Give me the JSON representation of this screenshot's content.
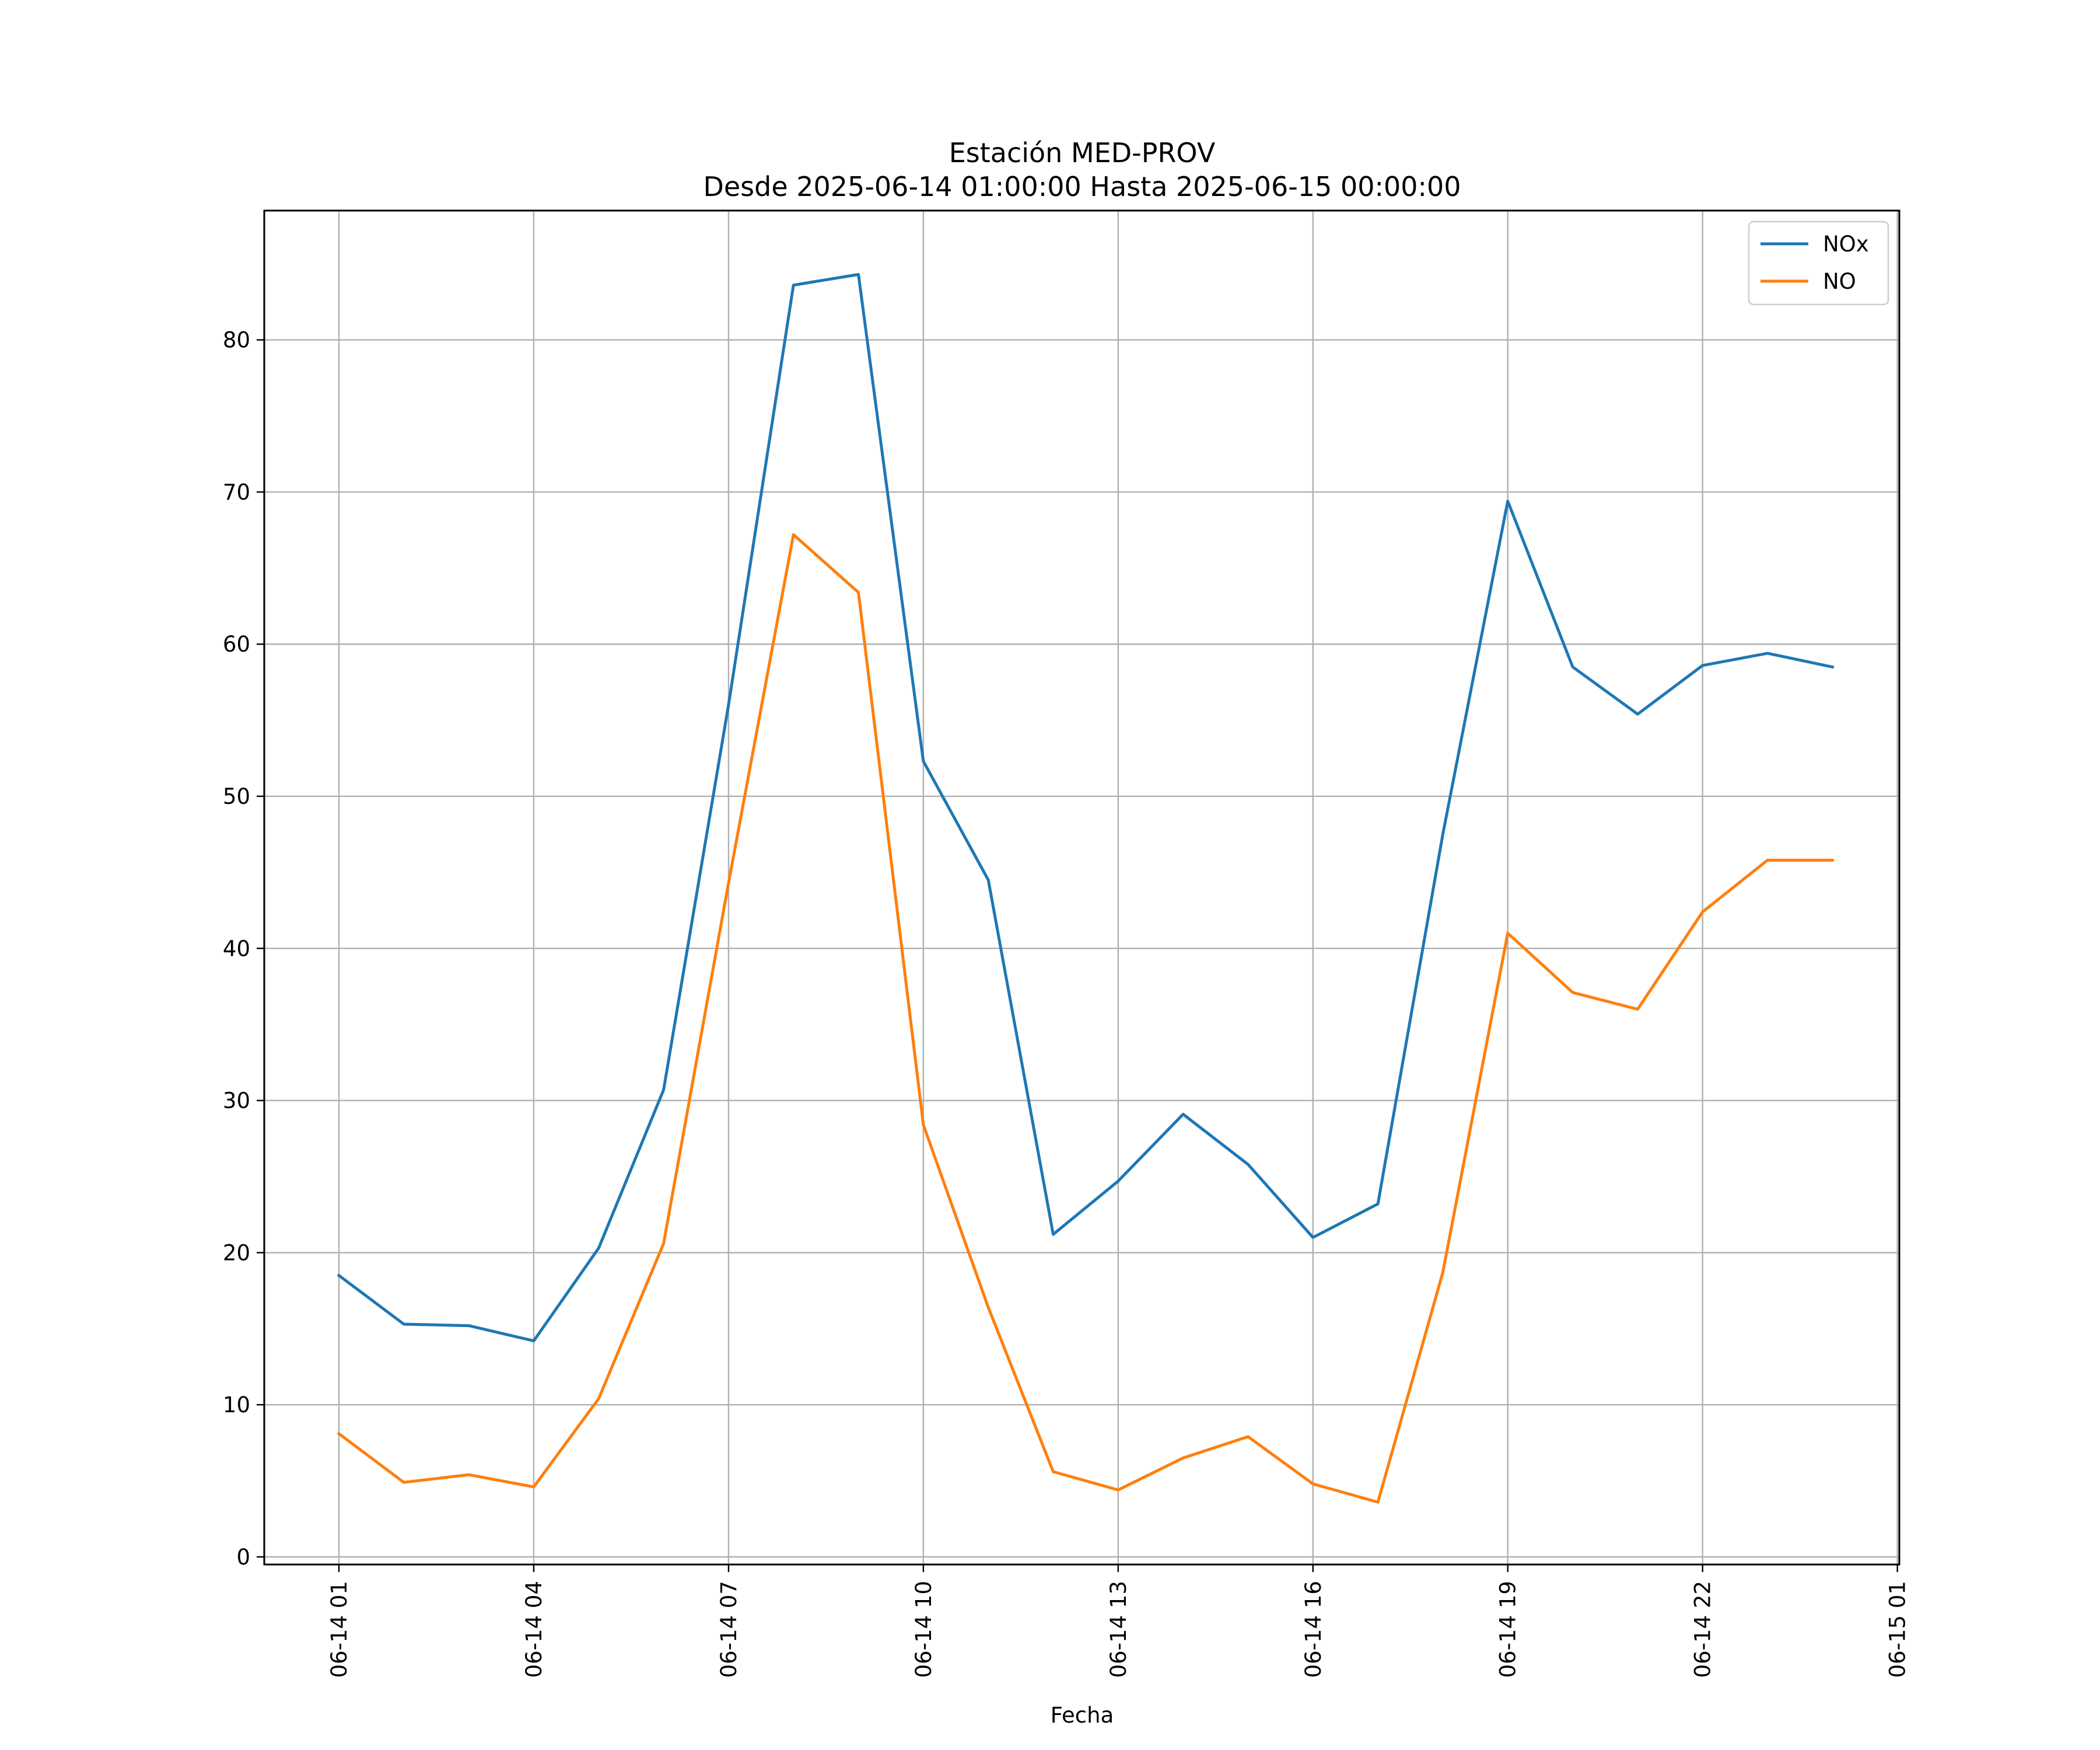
{
  "chart_data": {
    "type": "line",
    "title": "Estación MED-PROV",
    "subtitle": "Desde 2025-06-14 01:00:00 Hasta 2025-06-15 00:00:00",
    "xlabel": "Fecha",
    "ylabel": "",
    "x_hours": [
      1,
      2,
      3,
      4,
      5,
      6,
      7,
      8,
      9,
      10,
      11,
      12,
      13,
      14,
      15,
      16,
      17,
      18,
      19,
      20,
      21,
      22,
      23,
      24
    ],
    "xlim_hours": [
      -0.15,
      25.03
    ],
    "ylim": [
      -0.5,
      88.5
    ],
    "x_ticks": [
      {
        "hour": 1,
        "label": "06-14 01"
      },
      {
        "hour": 4,
        "label": "06-14 04"
      },
      {
        "hour": 7,
        "label": "06-14 07"
      },
      {
        "hour": 10,
        "label": "06-14 10"
      },
      {
        "hour": 13,
        "label": "06-14 13"
      },
      {
        "hour": 16,
        "label": "06-14 16"
      },
      {
        "hour": 19,
        "label": "06-14 19"
      },
      {
        "hour": 22,
        "label": "06-14 22"
      },
      {
        "hour": 25,
        "label": "06-15 01"
      }
    ],
    "y_ticks": [
      0,
      10,
      20,
      30,
      40,
      50,
      60,
      70,
      80
    ],
    "grid": true,
    "legend_position": "top-right",
    "series": [
      {
        "name": "NOx",
        "color": "#1f77b4",
        "values": [
          18.5,
          15.3,
          15.2,
          14.2,
          20.3,
          30.7,
          56.0,
          83.6,
          84.3,
          52.3,
          44.5,
          21.2,
          24.7,
          29.1,
          25.8,
          21.0,
          23.2,
          47.5,
          69.4,
          58.5,
          55.4,
          58.6,
          59.4,
          58.5
        ]
      },
      {
        "name": "NO",
        "color": "#ff7f0e",
        "values": [
          8.1,
          4.9,
          5.4,
          4.6,
          10.4,
          20.6,
          44.3,
          67.2,
          63.4,
          28.4,
          16.4,
          5.6,
          4.4,
          6.5,
          7.9,
          4.8,
          3.6,
          18.7,
          41.0,
          37.1,
          36.0,
          42.4,
          45.8,
          45.8
        ]
      }
    ]
  }
}
